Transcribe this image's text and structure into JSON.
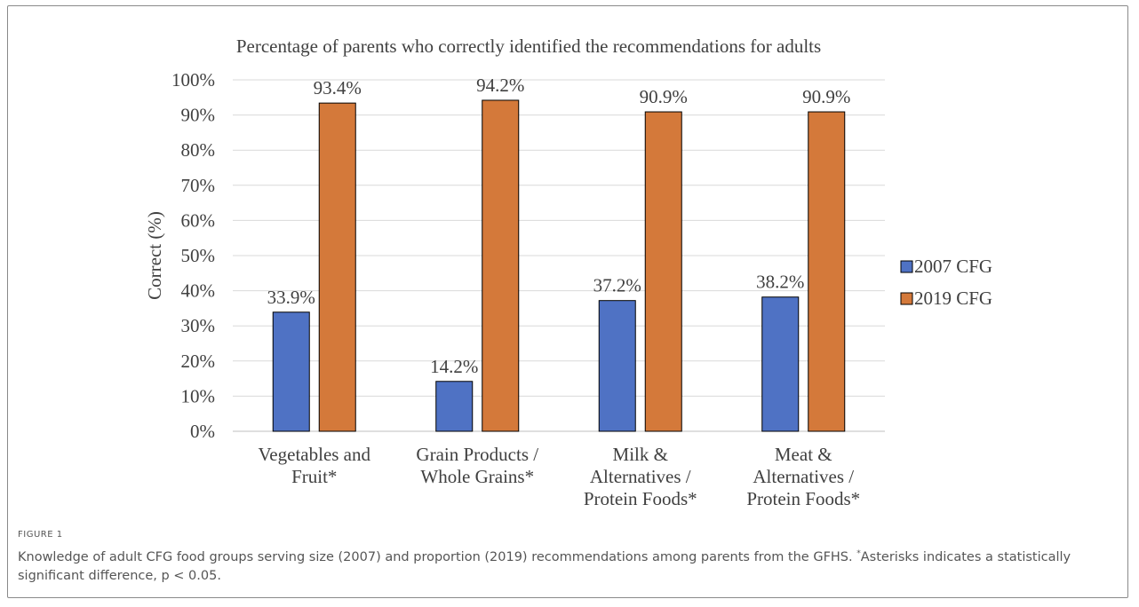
{
  "chart_data": {
    "type": "bar",
    "title": "Percentage of parents who correctly identified the recommendations for adults",
    "xlabel": "",
    "ylabel": "Correct (%)",
    "ylim": [
      0,
      100
    ],
    "yticks": [
      "0%",
      "10%",
      "20%",
      "30%",
      "40%",
      "50%",
      "60%",
      "70%",
      "80%",
      "90%",
      "100%"
    ],
    "grid": true,
    "legend_position": "right",
    "categories": [
      [
        "Vegetables and",
        "Fruit*"
      ],
      [
        "Grain Products /",
        "Whole Grains*"
      ],
      [
        "Milk &",
        "Alternatives /",
        "Protein Foods*"
      ],
      [
        "Meat &",
        "Alternatives /",
        "Protein Foods*"
      ]
    ],
    "series": [
      {
        "name": "2007 CFG",
        "color": "#4f72c4",
        "values": [
          33.9,
          14.2,
          37.2,
          38.2
        ],
        "labels": [
          "33.9%",
          "14.2%",
          "37.2%",
          "38.2%"
        ]
      },
      {
        "name": "2019 CFG",
        "color": "#d4793a",
        "values": [
          93.4,
          94.2,
          90.9,
          90.9
        ],
        "labels": [
          "93.4%",
          "94.2%",
          "90.9%",
          "90.9%"
        ]
      }
    ]
  },
  "figure": {
    "label": "FIGURE 1",
    "caption_pre": "Knowledge of adult CFG food groups serving size (2007) and proportion (2019) recommendations among parents from the GFHS. ",
    "caption_mark": "*",
    "caption_post": "Asterisks indicates a statistically significant difference, p < 0.05."
  }
}
